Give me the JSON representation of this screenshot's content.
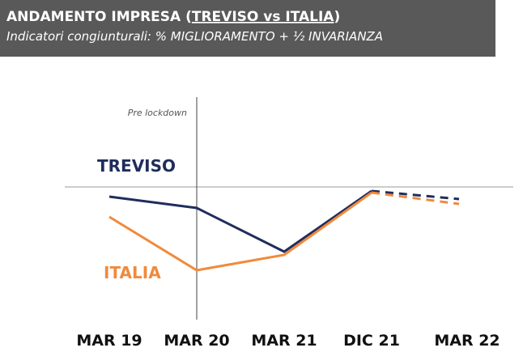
{
  "chart_data": {
    "type": "line",
    "title": [
      "ANDAMENTO IMPRESA (",
      "TREVISO vs ITALIA",
      ")"
    ],
    "subtitle": "Indicatori congiunturali: % MIGLIORAMENTO + ½ INVARIANZA",
    "categories": [
      "MAR 19",
      "MAR 20",
      "MAR 21",
      "DIC 21",
      "MAR 22"
    ],
    "series": [
      {
        "name": "TREVISO",
        "color": "#1f2d5c",
        "values": [
          94,
          87,
          60,
          97.5,
          92.5
        ]
      },
      {
        "name": "ITALIA",
        "color": "#f08a3c",
        "values": [
          81.5,
          48.5,
          58,
          96.5,
          89.5
        ]
      }
    ],
    "ylim": [
      20,
      140
    ],
    "reference_line": 100,
    "dashed_from_index": 3,
    "annotation": {
      "text": "Pre lockdown",
      "x_index": 1
    }
  }
}
